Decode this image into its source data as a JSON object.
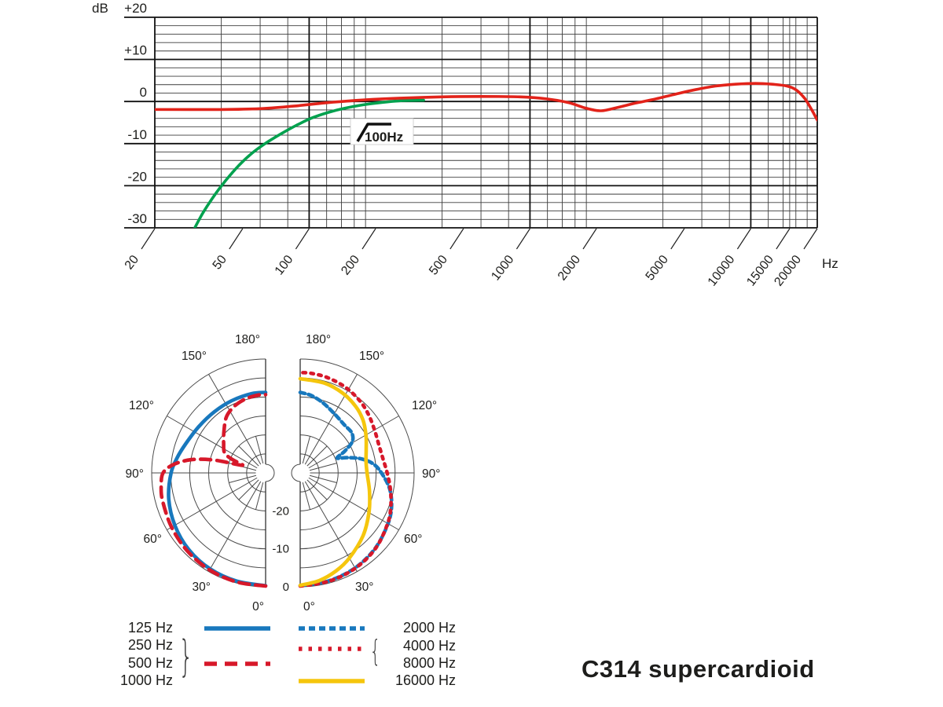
{
  "page": {
    "title_label": "C314 supercardioid",
    "background": "#ffffff"
  },
  "colors": {
    "response_red": "#e2231a",
    "lowcut_green": "#00a14e",
    "polar_blue": "#1878bd",
    "polar_red": "#d7182a",
    "polar_yellow": "#f5c60d",
    "grid_minor": "#3c3c3c",
    "grid_major": "#111111",
    "text": "#1d1d1b"
  },
  "chart_data": [
    {
      "id": "frequency-response",
      "type": "line",
      "title": "",
      "xlabel": "Hz",
      "ylabel": "dB",
      "x_axis": {
        "scale": "log",
        "min": 20,
        "max": 20000,
        "labeled_ticks": [
          20,
          50,
          100,
          200,
          500,
          1000,
          2000,
          5000,
          10000,
          15000,
          20000
        ],
        "unit_label": "Hz"
      },
      "y_axis": {
        "min": -30,
        "max": 20,
        "major_step": 10,
        "minor_step": 2,
        "tick_labels": [
          "+20",
          "+10",
          "0",
          "-10",
          "-20",
          "-30"
        ],
        "tick_values": [
          20,
          10,
          0,
          -10,
          -20,
          -30
        ],
        "unit_label": "dB"
      },
      "annotation": {
        "text": "100Hz",
        "icon": "high-pass-filter-icon"
      },
      "grid": true,
      "series": [
        {
          "name": "frequency-response-curve",
          "color": "#e2231a",
          "style": "solid",
          "points": [
            [
              20,
              -1.9
            ],
            [
              40,
              -1.9
            ],
            [
              60,
              -1.7
            ],
            [
              85,
              -1.1
            ],
            [
              120,
              -0.3
            ],
            [
              180,
              0.4
            ],
            [
              260,
              0.8
            ],
            [
              400,
              1.1
            ],
            [
              600,
              1.2
            ],
            [
              900,
              1.1
            ],
            [
              1200,
              0.6
            ],
            [
              1500,
              -0.3
            ],
            [
              1800,
              -1.6
            ],
            [
              2100,
              -2.2
            ],
            [
              2500,
              -1.4
            ],
            [
              3000,
              -0.4
            ],
            [
              3700,
              0.6
            ],
            [
              4600,
              1.8
            ],
            [
              5600,
              2.8
            ],
            [
              7000,
              3.7
            ],
            [
              8500,
              4.1
            ],
            [
              10500,
              4.3
            ],
            [
              12500,
              4.1
            ],
            [
              14500,
              3.7
            ],
            [
              16000,
              2.8
            ],
            [
              17500,
              0.8
            ],
            [
              18800,
              -1.8
            ],
            [
              20000,
              -4.4
            ]
          ]
        },
        {
          "name": "low-cut-filter-curve",
          "color": "#00a14e",
          "style": "solid",
          "points": [
            [
              30,
              -30.5
            ],
            [
              33,
              -26.5
            ],
            [
              37,
              -22.5
            ],
            [
              42,
              -18.7
            ],
            [
              48,
              -15.2
            ],
            [
              55,
              -12.3
            ],
            [
              64,
              -9.8
            ],
            [
              75,
              -7.6
            ],
            [
              88,
              -5.6
            ],
            [
              103,
              -3.9
            ],
            [
              122,
              -2.6
            ],
            [
              145,
              -1.6
            ],
            [
              175,
              -0.8
            ],
            [
              215,
              -0.2
            ],
            [
              265,
              0.2
            ],
            [
              330,
              0.3
            ]
          ]
        }
      ]
    },
    {
      "id": "polar-pattern",
      "type": "polar-half-pair",
      "r_axis": {
        "unit": "dB",
        "outer_value": 0,
        "ring_step": -5,
        "rings": 6,
        "labels": [
          "0",
          "-10",
          "-20"
        ],
        "label_values": [
          0,
          -10,
          -20
        ]
      },
      "angle_step_labels": [
        "0°",
        "30°",
        "60°",
        "90°",
        "120°",
        "150°",
        "180°"
      ],
      "halves": {
        "left": {
          "series": [
            {
              "name": "125 Hz",
              "color": "#1878bd",
              "style": "solid",
              "points": [
                [
                  0,
                  -0.3
                ],
                [
                  15,
                  -0.5
                ],
                [
                  30,
                  -0.8
                ],
                [
                  45,
                  -1.4
                ],
                [
                  60,
                  -2.4
                ],
                [
                  75,
                  -3.6
                ],
                [
                  90,
                  -5.1
                ],
                [
                  100,
                  -6.4
                ],
                [
                  110,
                  -7.6
                ],
                [
                  125,
                  -8.6
                ],
                [
                  140,
                  -9.0
                ],
                [
                  155,
                  -9.0
                ],
                [
                  170,
                  -8.8
                ],
                [
                  180,
                  -8.8
                ]
              ]
            },
            {
              "name": "250/500/1000 Hz",
              "color": "#d7182a",
              "style": "dashed",
              "points": [
                [
                  0,
                  -0.2
                ],
                [
                  15,
                  -0.3
                ],
                [
                  30,
                  -0.5
                ],
                [
                  45,
                  -0.9
                ],
                [
                  60,
                  -1.4
                ],
                [
                  75,
                  -1.9
                ],
                [
                  83,
                  -2.3
                ],
                [
                  90,
                  -3.0
                ],
                [
                  95,
                  -5.5
                ],
                [
                  100,
                  -10
                ],
                [
                  104,
                  -16
                ],
                [
                  108,
                  -23.5
                ],
                [
                  112,
                  -20.5
                ],
                [
                  116,
                  -18
                ],
                [
                  125,
                  -16.5
                ],
                [
                  135,
                  -14.5
                ],
                [
                  145,
                  -12
                ],
                [
                  155,
                  -10.6
                ],
                [
                  165,
                  -9.8
                ],
                [
                  175,
                  -9.4
                ],
                [
                  180,
                  -9.4
                ]
              ]
            }
          ]
        },
        "right": {
          "series": [
            {
              "name": "2000 Hz",
              "color": "#1878bd",
              "style": "dotted",
              "points": [
                [
                  0,
                  -0.3
                ],
                [
                  15,
                  -0.6
                ],
                [
                  30,
                  -1.1
                ],
                [
                  45,
                  -2.0
                ],
                [
                  60,
                  -3.3
                ],
                [
                  70,
                  -4.4
                ],
                [
                  80,
                  -6.1
                ],
                [
                  90,
                  -8.6
                ],
                [
                  97,
                  -10.6
                ],
                [
                  103,
                  -13.5
                ],
                [
                  108,
                  -17
                ],
                [
                  112,
                  -19.5
                ],
                [
                  116,
                  -17
                ],
                [
                  121,
                  -14
                ],
                [
                  128,
                  -12.8
                ],
                [
                  138,
                  -12.8
                ],
                [
                  150,
                  -12
                ],
                [
                  162,
                  -10.6
                ],
                [
                  172,
                  -9.4
                ],
                [
                  180,
                  -8.8
                ]
              ]
            },
            {
              "name": "4000/8000 Hz",
              "color": "#d7182a",
              "style": "dotted-fine",
              "points": [
                [
                  0,
                  -0.2
                ],
                [
                  15,
                  -0.5
                ],
                [
                  30,
                  -1.0
                ],
                [
                  45,
                  -1.9
                ],
                [
                  60,
                  -3.4
                ],
                [
                  70,
                  -4.6
                ],
                [
                  80,
                  -5.9
                ],
                [
                  90,
                  -7.1
                ],
                [
                  100,
                  -7.9
                ],
                [
                  110,
                  -8.0
                ],
                [
                  120,
                  -7.4
                ],
                [
                  130,
                  -6.4
                ],
                [
                  140,
                  -5.4
                ],
                [
                  152,
                  -4.5
                ],
                [
                  164,
                  -3.9
                ],
                [
                  174,
                  -3.6
                ],
                [
                  180,
                  -3.6
                ]
              ]
            },
            {
              "name": "16000 Hz",
              "color": "#f5c60d",
              "style": "solid",
              "points": [
                [
                  0,
                  -0.4
                ],
                [
                  10,
                  -1.2
                ],
                [
                  20,
                  -2.5
                ],
                [
                  30,
                  -4.1
                ],
                [
                  45,
                  -6.6
                ],
                [
                  60,
                  -9.1
                ],
                [
                  75,
                  -11.1
                ],
                [
                  90,
                  -12.4
                ],
                [
                  100,
                  -12.4
                ],
                [
                  110,
                  -11.5
                ],
                [
                  120,
                  -10
                ],
                [
                  130,
                  -8.4
                ],
                [
                  140,
                  -7.2
                ],
                [
                  152,
                  -6.2
                ],
                [
                  165,
                  -5.5
                ],
                [
                  180,
                  -5.2
                ]
              ]
            }
          ]
        }
      }
    }
  ],
  "legend": {
    "left_labels": [
      "125 Hz",
      "250 Hz",
      "500 Hz",
      "1000 Hz"
    ],
    "right_labels": [
      "2000 Hz",
      "4000 Hz",
      "8000 Hz",
      "16000 Hz"
    ],
    "left_brace": "}",
    "right_brace": "{",
    "swatches": [
      {
        "name": "125 Hz",
        "color": "#1878bd",
        "style": "solid"
      },
      {
        "name": "250/500/1000 Hz",
        "color": "#d7182a",
        "style": "dashed"
      },
      {
        "name": "2000 Hz",
        "color": "#1878bd",
        "style": "dotted"
      },
      {
        "name": "4000/8000 Hz",
        "color": "#d7182a",
        "style": "dotted-fine"
      },
      {
        "name": "16000 Hz",
        "color": "#f5c60d",
        "style": "solid"
      }
    ]
  }
}
